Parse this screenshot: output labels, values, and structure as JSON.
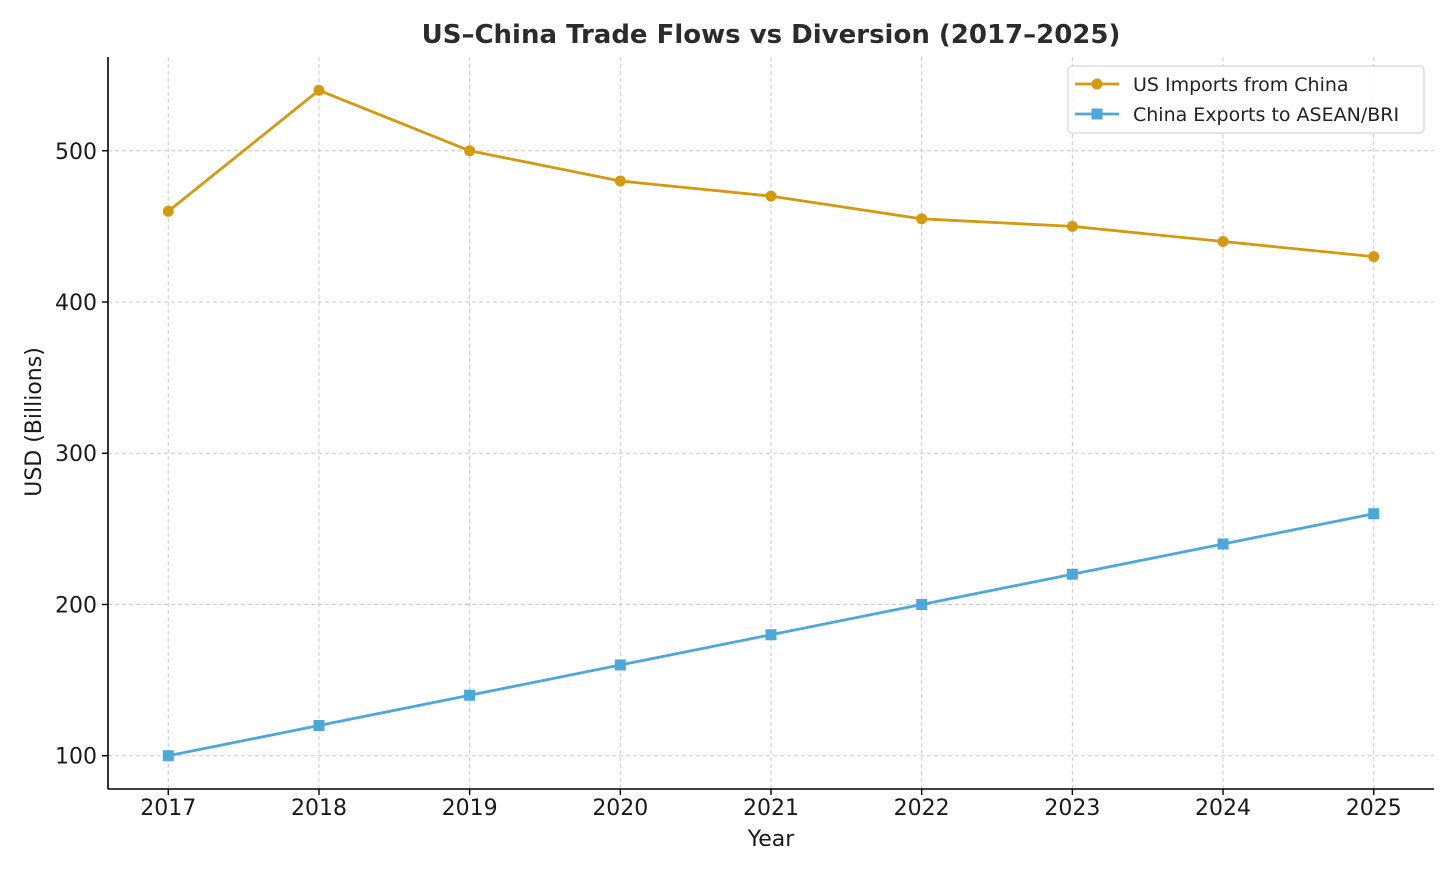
{
  "chart_data": {
    "type": "line",
    "title": "US–China Trade Flows vs Diversion (2017–2025)",
    "xlabel": "Year",
    "ylabel": "USD (Billions)",
    "x": [
      2017,
      2018,
      2019,
      2020,
      2021,
      2022,
      2023,
      2024,
      2025
    ],
    "xlim": [
      2016.6,
      2025.4
    ],
    "ylim": [
      78,
      562
    ],
    "yticks": [
      100,
      200,
      300,
      400,
      500
    ],
    "grid": true,
    "legend_position": "top-right",
    "series": [
      {
        "name": "US Imports from China",
        "color": "#D4990F",
        "marker": "circle",
        "values": [
          460,
          540,
          500,
          480,
          470,
          455,
          450,
          440,
          430
        ]
      },
      {
        "name": "China Exports to ASEAN/BRI",
        "color": "#4DA8DA",
        "marker": "square",
        "values": [
          100,
          120,
          140,
          160,
          180,
          200,
          220,
          240,
          260
        ]
      }
    ]
  }
}
